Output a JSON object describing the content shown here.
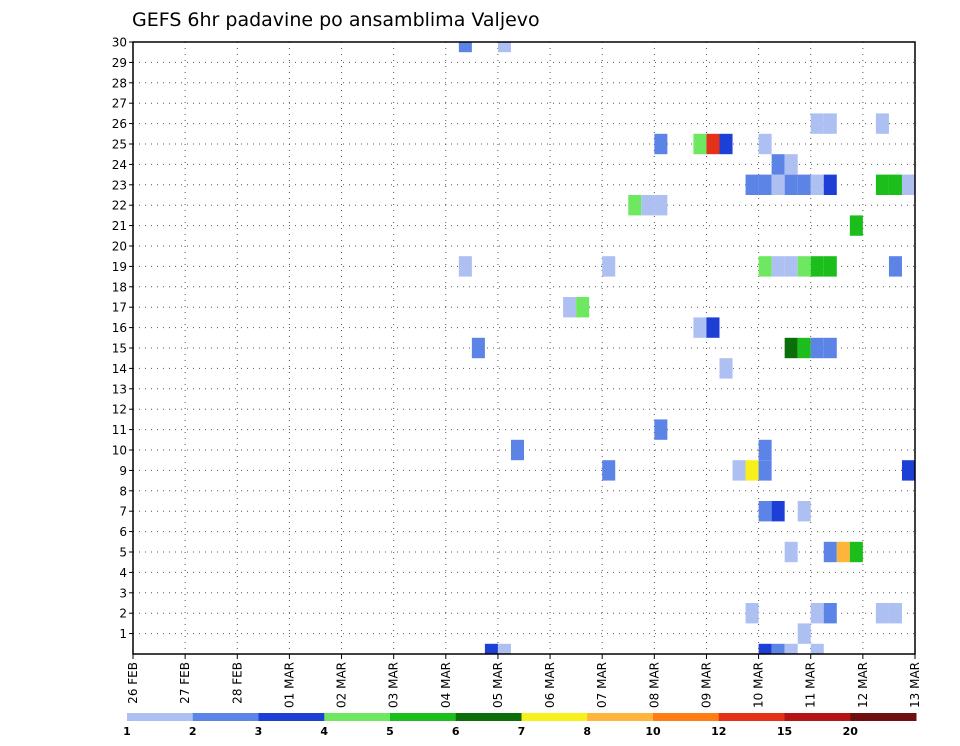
{
  "chart_data": {
    "type": "heatmap",
    "title": "GEFS 6hr padavine po ansamblima Valjevo",
    "xlabel": "",
    "ylabel": "",
    "y_ticks": [
      "1",
      "2",
      "3",
      "4",
      "5",
      "6",
      "7",
      "8",
      "9",
      "10",
      "11",
      "12",
      "13",
      "14",
      "15",
      "16",
      "17",
      "18",
      "19",
      "20",
      "21",
      "22",
      "23",
      "24",
      "25",
      "26",
      "27",
      "28",
      "29",
      "30"
    ],
    "ylim": [
      0,
      30
    ],
    "x_ticks": [
      "26 FEB",
      "27 FEB",
      "28 FEB",
      "01 MAR",
      "02 MAR",
      "03 MAR",
      "04 MAR",
      "05 MAR",
      "06 MAR",
      "07 MAR",
      "08 MAR",
      "09 MAR",
      "10 MAR",
      "11 MAR",
      "12 MAR",
      "13 MAR"
    ],
    "x_unit": "6-hour step from 26 FEB 00Z",
    "xlim": [
      0,
      60
    ],
    "grid": true,
    "colorbar": {
      "labels": [
        "1",
        "2",
        "3",
        "4",
        "5",
        "6",
        "7",
        "8",
        "10",
        "12",
        "15",
        "20"
      ],
      "colors": [
        "#aebff2",
        "#5c84e6",
        "#1e3fd6",
        "#6ee860",
        "#1cbe1c",
        "#0a6e0a",
        "#f8f01c",
        "#ffb43c",
        "#ff7d14",
        "#e43218",
        "#b41414",
        "#6e1010"
      ]
    },
    "cells": [
      {
        "t": 48,
        "m": 0,
        "c": 3
      },
      {
        "t": 49,
        "m": 0,
        "c": 2
      },
      {
        "t": 50,
        "m": 0,
        "c": 1
      },
      {
        "t": 52,
        "m": 0,
        "c": 1
      },
      {
        "t": 27,
        "m": 0,
        "c": 3
      },
      {
        "t": 28,
        "m": 0,
        "c": 1
      },
      {
        "t": 51,
        "m": 1,
        "c": 1
      },
      {
        "t": 47,
        "m": 2,
        "c": 1
      },
      {
        "t": 52,
        "m": 2,
        "c": 1
      },
      {
        "t": 53,
        "m": 2,
        "c": 2
      },
      {
        "t": 57,
        "m": 2,
        "c": 1
      },
      {
        "t": 58,
        "m": 2,
        "c": 1
      },
      {
        "t": 50,
        "m": 5,
        "c": 1
      },
      {
        "t": 53,
        "m": 5,
        "c": 2
      },
      {
        "t": 54,
        "m": 5,
        "c": 8
      },
      {
        "t": 55,
        "m": 5,
        "c": 5
      },
      {
        "t": 48,
        "m": 7,
        "c": 2
      },
      {
        "t": 49,
        "m": 7,
        "c": 3
      },
      {
        "t": 51,
        "m": 7,
        "c": 1
      },
      {
        "t": 36,
        "m": 9,
        "c": 2
      },
      {
        "t": 46,
        "m": 9,
        "c": 1
      },
      {
        "t": 47,
        "m": 9,
        "c": 7
      },
      {
        "t": 48,
        "m": 9,
        "c": 2
      },
      {
        "t": 59,
        "m": 9,
        "c": 3
      },
      {
        "t": 29,
        "m": 10,
        "c": 2
      },
      {
        "t": 48,
        "m": 10,
        "c": 2
      },
      {
        "t": 40,
        "m": 11,
        "c": 2
      },
      {
        "t": 45,
        "m": 14,
        "c": 1
      },
      {
        "t": 26,
        "m": 15,
        "c": 2
      },
      {
        "t": 50,
        "m": 15,
        "c": 6
      },
      {
        "t": 51,
        "m": 15,
        "c": 5
      },
      {
        "t": 52,
        "m": 15,
        "c": 2
      },
      {
        "t": 53,
        "m": 15,
        "c": 2
      },
      {
        "t": 43,
        "m": 16,
        "c": 1
      },
      {
        "t": 44,
        "m": 16,
        "c": 3
      },
      {
        "t": 33,
        "m": 17,
        "c": 1
      },
      {
        "t": 34,
        "m": 17,
        "c": 4
      },
      {
        "t": 25,
        "m": 19,
        "c": 1
      },
      {
        "t": 36,
        "m": 19,
        "c": 1
      },
      {
        "t": 48,
        "m": 19,
        "c": 4
      },
      {
        "t": 49,
        "m": 19,
        "c": 1
      },
      {
        "t": 50,
        "m": 19,
        "c": 1
      },
      {
        "t": 51,
        "m": 19,
        "c": 4
      },
      {
        "t": 52,
        "m": 19,
        "c": 5
      },
      {
        "t": 53,
        "m": 19,
        "c": 5
      },
      {
        "t": 58,
        "m": 19,
        "c": 2
      },
      {
        "t": 55,
        "m": 21,
        "c": 5
      },
      {
        "t": 38,
        "m": 22,
        "c": 4
      },
      {
        "t": 39,
        "m": 22,
        "c": 1
      },
      {
        "t": 40,
        "m": 22,
        "c": 1
      },
      {
        "t": 47,
        "m": 23,
        "c": 2
      },
      {
        "t": 48,
        "m": 23,
        "c": 2
      },
      {
        "t": 49,
        "m": 23,
        "c": 1
      },
      {
        "t": 50,
        "m": 23,
        "c": 2
      },
      {
        "t": 51,
        "m": 23,
        "c": 2
      },
      {
        "t": 52,
        "m": 23,
        "c": 1
      },
      {
        "t": 53,
        "m": 23,
        "c": 3
      },
      {
        "t": 57,
        "m": 23,
        "c": 5
      },
      {
        "t": 58,
        "m": 23,
        "c": 5
      },
      {
        "t": 59,
        "m": 23,
        "c": 1
      },
      {
        "t": 49,
        "m": 24,
        "c": 2
      },
      {
        "t": 50,
        "m": 24,
        "c": 1
      },
      {
        "t": 40,
        "m": 25,
        "c": 2
      },
      {
        "t": 43,
        "m": 25,
        "c": 4
      },
      {
        "t": 44,
        "m": 25,
        "c": 10
      },
      {
        "t": 45,
        "m": 25,
        "c": 3
      },
      {
        "t": 48,
        "m": 25,
        "c": 1
      },
      {
        "t": 52,
        "m": 26,
        "c": 1
      },
      {
        "t": 53,
        "m": 26,
        "c": 1
      },
      {
        "t": 57,
        "m": 26,
        "c": 1
      },
      {
        "t": 25,
        "m": 30,
        "c": 2
      },
      {
        "t": 28,
        "m": 30,
        "c": 1
      }
    ]
  }
}
